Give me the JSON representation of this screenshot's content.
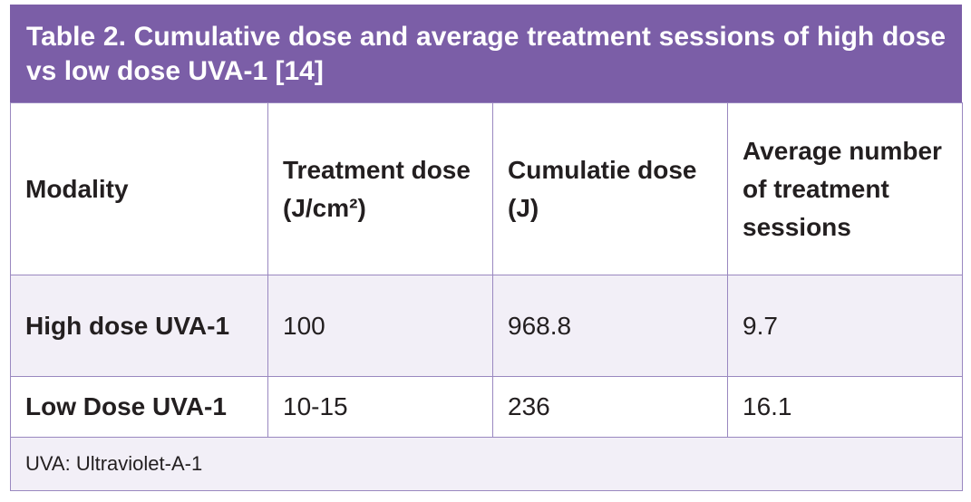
{
  "header": {
    "title": "Table 2. Cumulative dose and average treatment sessions of high dose vs low dose UVA-1 [14]"
  },
  "table": {
    "columns": [
      "Modality",
      "Treatment dose (J/cm²)",
      "Cumulatie dose (J)",
      "Average number of treatment sessions"
    ],
    "rows": [
      [
        "High dose UVA-1",
        "100",
        "968.8",
        "9.7"
      ],
      [
        "Low Dose UVA-1",
        "10-15",
        "236",
        "16.1"
      ]
    ]
  },
  "footnote": "UVA: Ultraviolet-A-1"
}
